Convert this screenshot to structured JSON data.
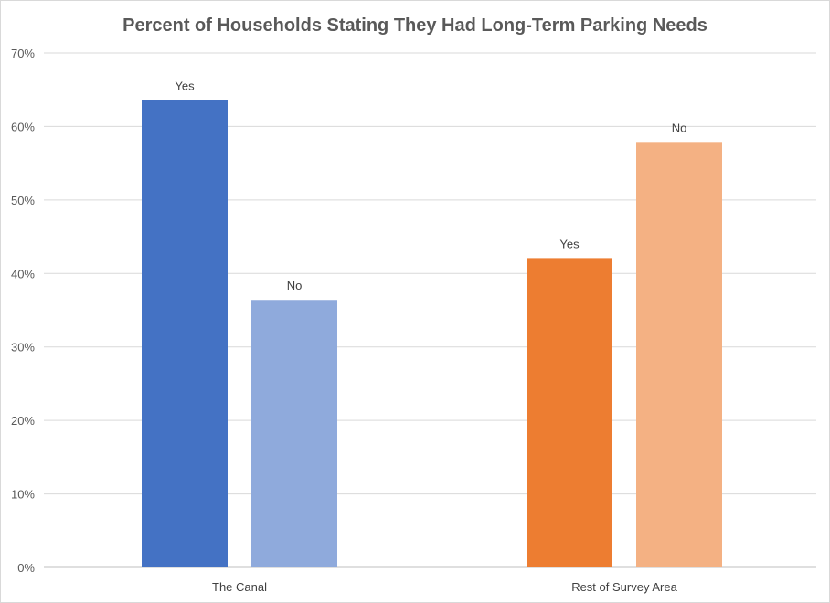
{
  "chart_data": {
    "type": "bar",
    "title": "Percent of Households Stating They Had Long-Term Parking Needs",
    "xlabel": "",
    "ylabel": "",
    "ylim": [
      0,
      70
    ],
    "yticks": [
      0,
      10,
      20,
      30,
      40,
      50,
      60,
      70
    ],
    "ytick_labels": [
      "0%",
      "10%",
      "20%",
      "30%",
      "40%",
      "50%",
      "60%",
      "70%"
    ],
    "grid": true,
    "legend": "none",
    "categories": [
      "The Canal",
      "Rest of Survey Area"
    ],
    "bars": [
      {
        "category": "The Canal",
        "label": "Yes",
        "value": 63.6,
        "color": "#4472C4"
      },
      {
        "category": "The Canal",
        "label": "No",
        "value": 36.4,
        "color": "#8FAADC"
      },
      {
        "category": "Rest of Survey Area",
        "label": "Yes",
        "value": 42.1,
        "color": "#ED7D31"
      },
      {
        "category": "Rest of Survey Area",
        "label": "No",
        "value": 57.9,
        "color": "#F4B183"
      }
    ]
  }
}
